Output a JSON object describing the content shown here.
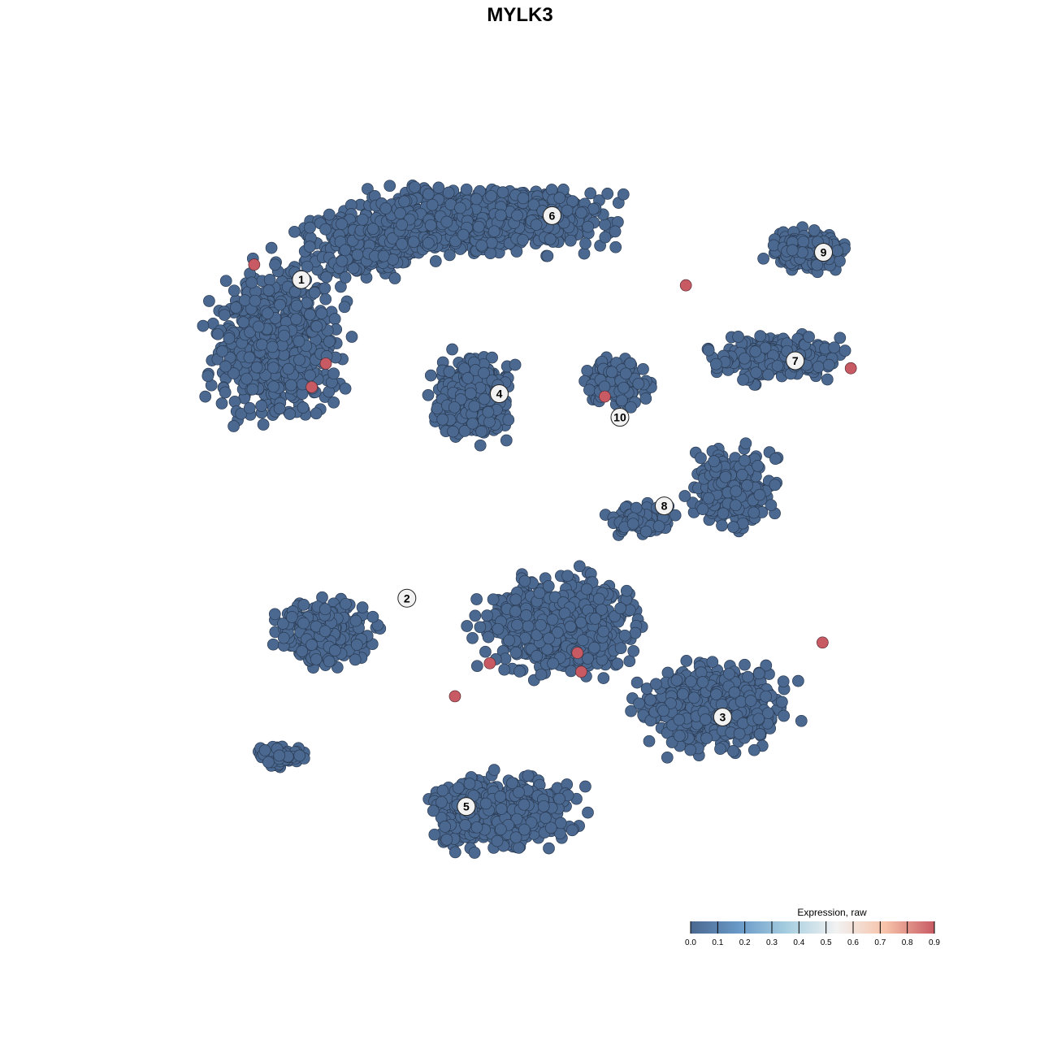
{
  "chart_data": {
    "type": "scatter",
    "title": "MYLK3",
    "xlabel": "",
    "ylabel": "",
    "axes_visible": false,
    "grid": false,
    "point_color_default": "#4a6890",
    "cluster_labels": [
      {
        "label": "1",
        "x": -23.2,
        "y": 25.5
      },
      {
        "label": "2",
        "x": -12.0,
        "y": -8.3
      },
      {
        "label": "3",
        "x": 21.5,
        "y": -20.9
      },
      {
        "label": "4",
        "x": -2.2,
        "y": 13.4
      },
      {
        "label": "5",
        "x": -5.7,
        "y": -30.4
      },
      {
        "label": "6",
        "x": 3.4,
        "y": 32.3
      },
      {
        "label": "7",
        "x": 29.2,
        "y": 16.9
      },
      {
        "label": "8",
        "x": 15.3,
        "y": 1.5
      },
      {
        "label": "9",
        "x": 32.2,
        "y": 28.4
      },
      {
        "label": "10",
        "x": 10.6,
        "y": 10.9
      }
    ],
    "expressing_points": [
      {
        "x": -28.2,
        "y": 27.1,
        "value": 0.9
      },
      {
        "x": -20.6,
        "y": 16.6,
        "value": 0.9
      },
      {
        "x": -22.1,
        "y": 14.1,
        "value": 0.9
      },
      {
        "x": 17.6,
        "y": 24.9,
        "value": 0.9
      },
      {
        "x": 9.0,
        "y": 13.1,
        "value": 0.9
      },
      {
        "x": 35.1,
        "y": 16.1,
        "value": 0.9
      },
      {
        "x": -3.2,
        "y": -15.2,
        "value": 0.9
      },
      {
        "x": 6.1,
        "y": -14.1,
        "value": 0.9
      },
      {
        "x": 6.5,
        "y": -16.1,
        "value": 0.9
      },
      {
        "x": -6.9,
        "y": -18.7,
        "value": 0.9
      },
      {
        "x": 32.1,
        "y": -13.0,
        "value": 0.9
      }
    ],
    "background_value": 0.0,
    "legend": {
      "title": "Expression, raw",
      "position": "bottom-right",
      "ticks": [
        "0.0",
        "0.1",
        "0.2",
        "0.3",
        "0.4",
        "0.5",
        "0.6",
        "0.7",
        "0.8",
        "0.9"
      ],
      "range": [
        0.0,
        0.9
      ],
      "colors": [
        "#4a6890",
        "#6a9ac8",
        "#a8cfe0",
        "#f2f2f2",
        "#f6c2a8",
        "#c85a64"
      ]
    }
  }
}
